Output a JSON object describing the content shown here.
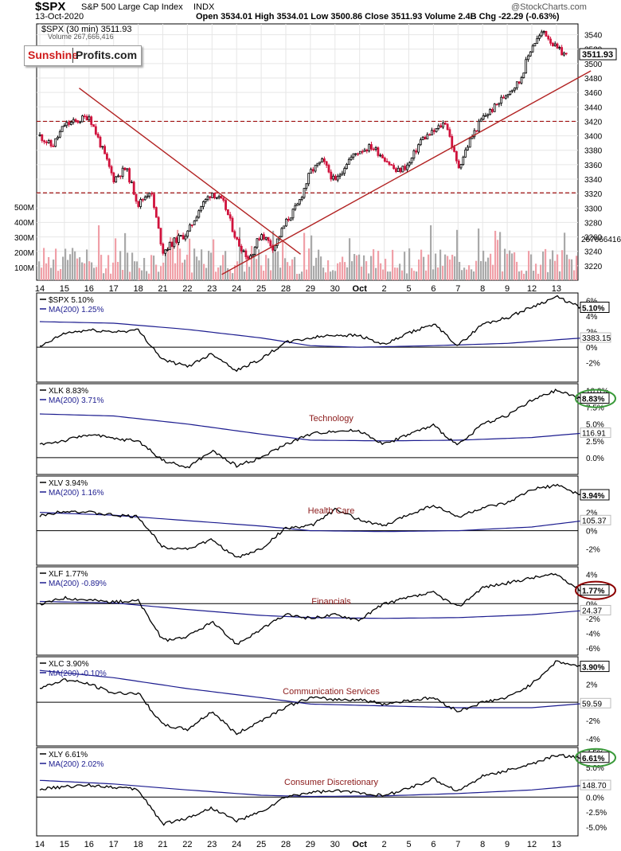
{
  "header": {
    "ticker": "$SPX",
    "name": "S&P 500 Large Cap Index",
    "exchange": "INDX",
    "date": "13-Oct-2020",
    "ohlc": "Open 3534.01  High 3534.01  Low 3500.86  Close 3511.93  Volume 2.4B  Chg -22.29 (-0.63%)",
    "watermark": "@StockCharts.com"
  },
  "logo": {
    "left": "Sunshine",
    "right": "Profits.com"
  },
  "colors": {
    "price_up": "#000000",
    "price_down": "#d0123c",
    "trendline": "#b22222",
    "ma_line": "#1c1c8f",
    "circle_green": "#3a9a3a",
    "circle_red": "#8b0000",
    "volume_up": "#a9a9a9",
    "volume_down": "#f0a0a8"
  },
  "chart_data": [
    {
      "type": "candlestick",
      "title": "$SPX (30 min) 3511.93",
      "volume_label": "Volume 267,666,416",
      "ylim": [
        3200,
        3555
      ],
      "y_ticks": [
        3220,
        3240,
        3260,
        3280,
        3300,
        3320,
        3340,
        3360,
        3380,
        3400,
        3420,
        3440,
        3460,
        3480,
        3500,
        3520,
        3540
      ],
      "last_value_label": "3511.93",
      "volume_axis_ticks": [
        "100M",
        "200M",
        "300M",
        "400M",
        "500M"
      ],
      "volume_last_label": "267666416",
      "x_tick_labels": [
        "14",
        "15",
        "16",
        "17",
        "18",
        "21",
        "22",
        "23",
        "24",
        "25",
        "28",
        "29",
        "30",
        "Oct",
        "2",
        "5",
        "6",
        "7",
        "8",
        "9",
        "12",
        "13"
      ],
      "price_path": [
        [
          0,
          3400
        ],
        [
          0.5,
          3385
        ],
        [
          1,
          3415
        ],
        [
          1.5,
          3420
        ],
        [
          2,
          3428
        ],
        [
          2.5,
          3385
        ],
        [
          3,
          3340
        ],
        [
          3.5,
          3355
        ],
        [
          4,
          3305
        ],
        [
          4.5,
          3325
        ],
        [
          5,
          3240
        ],
        [
          5.5,
          3255
        ],
        [
          6,
          3265
        ],
        [
          6.5,
          3300
        ],
        [
          7,
          3322
        ],
        [
          7.5,
          3305
        ],
        [
          8,
          3255
        ],
        [
          8.5,
          3230
        ],
        [
          9,
          3265
        ],
        [
          9.5,
          3245
        ],
        [
          10,
          3280
        ],
        [
          10.5,
          3305
        ],
        [
          11,
          3350
        ],
        [
          11.5,
          3365
        ],
        [
          12,
          3335
        ],
        [
          12.5,
          3365
        ],
        [
          13,
          3380
        ],
        [
          13.5,
          3385
        ],
        [
          14,
          3370
        ],
        [
          14.5,
          3350
        ],
        [
          15,
          3360
        ],
        [
          15.5,
          3395
        ],
        [
          16,
          3405
        ],
        [
          16.5,
          3420
        ],
        [
          17,
          3355
        ],
        [
          17.5,
          3395
        ],
        [
          18,
          3425
        ],
        [
          18.5,
          3440
        ],
        [
          19,
          3460
        ],
        [
          19.5,
          3475
        ],
        [
          20,
          3525
        ],
        [
          20.5,
          3545
        ],
        [
          21,
          3520
        ],
        [
          21.4,
          3511.93
        ]
      ],
      "horizontal_lines": [
        3420,
        3321
      ],
      "trendlines": [
        {
          "from": [
            1.6,
            3466
          ],
          "to": [
            10.6,
            3236
          ]
        },
        {
          "from": [
            7.4,
            3208
          ],
          "to": [
            22.4,
            3490
          ]
        }
      ]
    },
    {
      "type": "line",
      "title": "$SPX 5.10%",
      "ma_label": "MA(200) 1.25%",
      "last_value_label": "5.10%",
      "ma_last_label": "3383.15",
      "y_ticks": [
        "6%",
        "4%",
        "2%",
        "0%",
        "-2%"
      ],
      "y_tick_values": [
        6,
        4,
        2,
        0,
        -2
      ],
      "ylim": [
        -4.5,
        7
      ],
      "series": [
        {
          "values": [
            0,
            1.8,
            2.2,
            2.0,
            2.2,
            -1.6,
            -2.5,
            -0.8,
            -3.0,
            -1.5,
            0.6,
            1.2,
            1.6,
            1.5,
            0.3,
            1.8,
            3.0,
            0.2,
            3.0,
            3.8,
            5.2,
            6.5,
            5.1
          ]
        }
      ],
      "ma_points": [
        [
          0,
          3.3
        ],
        [
          3,
          3.1
        ],
        [
          6,
          2.3
        ],
        [
          9,
          1.2
        ],
        [
          11,
          0.2
        ],
        [
          13,
          0.0
        ],
        [
          16,
          0.2
        ],
        [
          19,
          0.5
        ],
        [
          22.3,
          1.25
        ]
      ]
    },
    {
      "type": "line",
      "title": "XLK 8.83%",
      "ma_label": "MA(200) 3.71%",
      "panel_label": "Technology",
      "last_value_label": "8.83%",
      "ma_last_label": "116.91",
      "circle": "green",
      "y_ticks": [
        "10.0%",
        "7.5%",
        "5.0%",
        "2.5%",
        "0.0%"
      ],
      "y_tick_values": [
        10,
        7.5,
        5,
        2.5,
        0
      ],
      "ylim": [
        -2.5,
        11
      ],
      "series": [
        {
          "values": [
            2.0,
            2.5,
            3.5,
            2.8,
            2.5,
            -0.4,
            -1.5,
            1.0,
            -1.2,
            0.0,
            2.0,
            3.5,
            4.0,
            4.0,
            2.0,
            3.5,
            4.8,
            1.8,
            5.0,
            6.3,
            8.5,
            10.0,
            8.8
          ]
        }
      ],
      "ma_points": [
        [
          0,
          6.5
        ],
        [
          3,
          6.2
        ],
        [
          6,
          5.0
        ],
        [
          9,
          3.5
        ],
        [
          11,
          2.6
        ],
        [
          14,
          2.5
        ],
        [
          17,
          2.6
        ],
        [
          20,
          3.0
        ],
        [
          22.3,
          3.71
        ]
      ]
    },
    {
      "type": "line",
      "title": "XLV 3.94%",
      "ma_label": "MA(200) 1.16%",
      "panel_label": "Health Care",
      "last_value_label": "3.94%",
      "ma_last_label": "105.37",
      "y_ticks": [
        "2%",
        "0%",
        "-2%"
      ],
      "y_tick_values": [
        2,
        0,
        -2
      ],
      "ylim": [
        -3.8,
        6
      ],
      "series": [
        {
          "values": [
            1.6,
            2.2,
            2.0,
            1.7,
            1.5,
            -1.8,
            -2.0,
            -1.0,
            -3.0,
            -2.0,
            0.3,
            0.5,
            2.3,
            1.2,
            0.5,
            1.8,
            2.8,
            1.5,
            2.5,
            3.0,
            4.5,
            5.0,
            3.9
          ]
        }
      ],
      "ma_points": [
        [
          0,
          2.0
        ],
        [
          3,
          1.7
        ],
        [
          6,
          1.1
        ],
        [
          9,
          0.5
        ],
        [
          11,
          0.0
        ],
        [
          14,
          -0.1
        ],
        [
          17,
          0.0
        ],
        [
          20,
          0.4
        ],
        [
          22.3,
          1.16
        ]
      ]
    },
    {
      "type": "line",
      "title": "XLF 1.77%",
      "ma_label": "MA(200) -0.89%",
      "panel_label": "Financials",
      "last_value_label": "1.77%",
      "ma_last_label": "24.37",
      "circle": "red",
      "y_ticks": [
        "4%",
        "2%",
        "0%",
        "-2%",
        "-4%",
        "-6%"
      ],
      "y_tick_values": [
        4,
        2,
        0,
        -2,
        -4,
        -6
      ],
      "ylim": [
        -7,
        5
      ],
      "series": [
        {
          "values": [
            -0.1,
            0.8,
            0.5,
            0.2,
            0.4,
            -5.0,
            -4.5,
            -2.5,
            -5.5,
            -3.5,
            -1.5,
            -2.0,
            -1.5,
            -2.2,
            0.0,
            0.8,
            1.5,
            -0.5,
            2.2,
            2.8,
            3.5,
            4.0,
            1.8
          ]
        }
      ],
      "ma_points": [
        [
          0,
          0.3
        ],
        [
          3,
          0.1
        ],
        [
          6,
          -0.8
        ],
        [
          9,
          -1.6
        ],
        [
          11,
          -1.9
        ],
        [
          14,
          -2.0
        ],
        [
          17,
          -1.9
        ],
        [
          20,
          -1.5
        ],
        [
          22.3,
          -0.89
        ]
      ]
    },
    {
      "type": "line",
      "title": "XLC 3.90%",
      "ma_label": "MA(200) -0.10%",
      "panel_label": "Communication Services",
      "last_value_label": "3.90%",
      "ma_last_label": "59.59",
      "y_ticks": [
        "4%",
        "2%",
        "0%",
        "-2%",
        "-4%"
      ],
      "y_tick_values": [
        4,
        2,
        0,
        -2,
        -4
      ],
      "ylim": [
        -4.8,
        5
      ],
      "series": [
        {
          "values": [
            1.5,
            2.5,
            2.0,
            1.0,
            1.0,
            -2.5,
            -3.0,
            -1.0,
            -3.5,
            -2.0,
            -0.5,
            0.5,
            0.3,
            0.3,
            -0.2,
            0.2,
            0.5,
            -1.0,
            0.0,
            0.5,
            2.0,
            4.5,
            3.9
          ]
        }
      ],
      "ma_points": [
        [
          0,
          3.5
        ],
        [
          3,
          2.7
        ],
        [
          6,
          1.5
        ],
        [
          9,
          0.5
        ],
        [
          11,
          -0.2
        ],
        [
          14,
          -0.4
        ],
        [
          17,
          -0.6
        ],
        [
          20,
          -0.6
        ],
        [
          22.3,
          -0.1
        ]
      ]
    },
    {
      "type": "line",
      "title": "XLY 6.61%",
      "ma_label": "MA(200) 2.02%",
      "panel_label": "Consumer Discretionary",
      "last_value_label": "6.61%",
      "ma_last_label": "148.70",
      "circle": "green",
      "y_ticks": [
        "7.5%",
        "5.0%",
        "2.5%",
        "0.0%",
        "-2.5%",
        "-5.0%"
      ],
      "y_tick_values": [
        7.5,
        5.0,
        2.5,
        0.0,
        -2.5,
        -5.0
      ],
      "ylim": [
        -6.5,
        8.3
      ],
      "series": [
        {
          "values": [
            1.3,
            1.7,
            2.0,
            1.7,
            1.2,
            -4.5,
            -3.5,
            -1.8,
            -4.0,
            -2.5,
            0.0,
            0.8,
            1.0,
            0.8,
            0.2,
            1.5,
            3.0,
            1.0,
            3.5,
            4.5,
            5.5,
            7.0,
            6.6
          ]
        }
      ],
      "ma_points": [
        [
          0,
          2.8
        ],
        [
          3,
          2.2
        ],
        [
          6,
          1.2
        ],
        [
          9,
          0.3
        ],
        [
          11,
          0.1
        ],
        [
          14,
          0.2
        ],
        [
          17,
          0.6
        ],
        [
          20,
          1.2
        ],
        [
          22.3,
          2.02
        ]
      ]
    }
  ]
}
